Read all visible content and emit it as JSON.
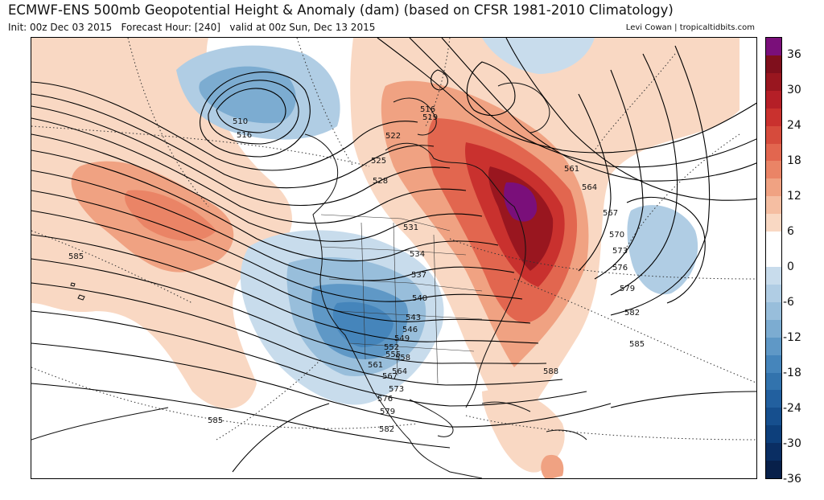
{
  "header": {
    "title": "ECMWF-ENS 500mb Geopotential Height & Anomaly (dam) (based on CFSR 1981-2010 Climatology)",
    "init": "Init: 00z Dec 03 2015",
    "forecast_hour": "Forecast Hour: [240]",
    "valid": "valid at 00z Sun, Dec 13 2015",
    "credit": "Levi Cowan | tropicaltidbits.com"
  },
  "colorbar": {
    "ticks": [
      "36",
      "30",
      "24",
      "18",
      "12",
      "6",
      "0",
      "-6",
      "-12",
      "-18",
      "-24",
      "-30",
      "-36"
    ],
    "colors": [
      "#7a0f7a",
      "#7f0f1c",
      "#99161f",
      "#b51f27",
      "#c9312e",
      "#d64b3c",
      "#e2664f",
      "#ea8466",
      "#f0a282",
      "#f5bea2",
      "#f9d8c3",
      "#ffffff",
      "#ffffff",
      "#c8dcec",
      "#b0cde4",
      "#98bedb",
      "#7cacd1",
      "#5f98c6",
      "#4585bb",
      "#3273ad",
      "#22609f",
      "#164f8e",
      "#0d3f7b",
      "#0a2e63",
      "#08204a"
    ]
  },
  "contour_labels": [
    {
      "id": "510-nw",
      "text": "510"
    },
    {
      "id": "516-nw",
      "text": "516"
    },
    {
      "id": "516-ne",
      "text": "516"
    },
    {
      "id": "519",
      "text": "519"
    },
    {
      "id": "522",
      "text": "522"
    },
    {
      "id": "525",
      "text": "525"
    },
    {
      "id": "528",
      "text": "528"
    },
    {
      "id": "531",
      "text": "531"
    },
    {
      "id": "534",
      "text": "534"
    },
    {
      "id": "537",
      "text": "537"
    },
    {
      "id": "540",
      "text": "540"
    },
    {
      "id": "543",
      "text": "543"
    },
    {
      "id": "546",
      "text": "546"
    },
    {
      "id": "549",
      "text": "549"
    },
    {
      "id": "552",
      "text": "552"
    },
    {
      "id": "555",
      "text": "555"
    },
    {
      "id": "558",
      "text": "558"
    },
    {
      "id": "561-s",
      "text": "561"
    },
    {
      "id": "564-s",
      "text": "564"
    },
    {
      "id": "567-s",
      "text": "567"
    },
    {
      "id": "573-s",
      "text": "573"
    },
    {
      "id": "576-s",
      "text": "576"
    },
    {
      "id": "579-s",
      "text": "579"
    },
    {
      "id": "582-s",
      "text": "582"
    },
    {
      "id": "561-e",
      "text": "561"
    },
    {
      "id": "564-e",
      "text": "564"
    },
    {
      "id": "567-e",
      "text": "567"
    },
    {
      "id": "570-e",
      "text": "570"
    },
    {
      "id": "573-e",
      "text": "573"
    },
    {
      "id": "576-e",
      "text": "576"
    },
    {
      "id": "579-e",
      "text": "579"
    },
    {
      "id": "582-e",
      "text": "582"
    },
    {
      "id": "585-e",
      "text": "585"
    },
    {
      "id": "588",
      "text": "588"
    },
    {
      "id": "585-w",
      "text": "585"
    },
    {
      "id": "585-sw",
      "text": "585"
    }
  ]
}
